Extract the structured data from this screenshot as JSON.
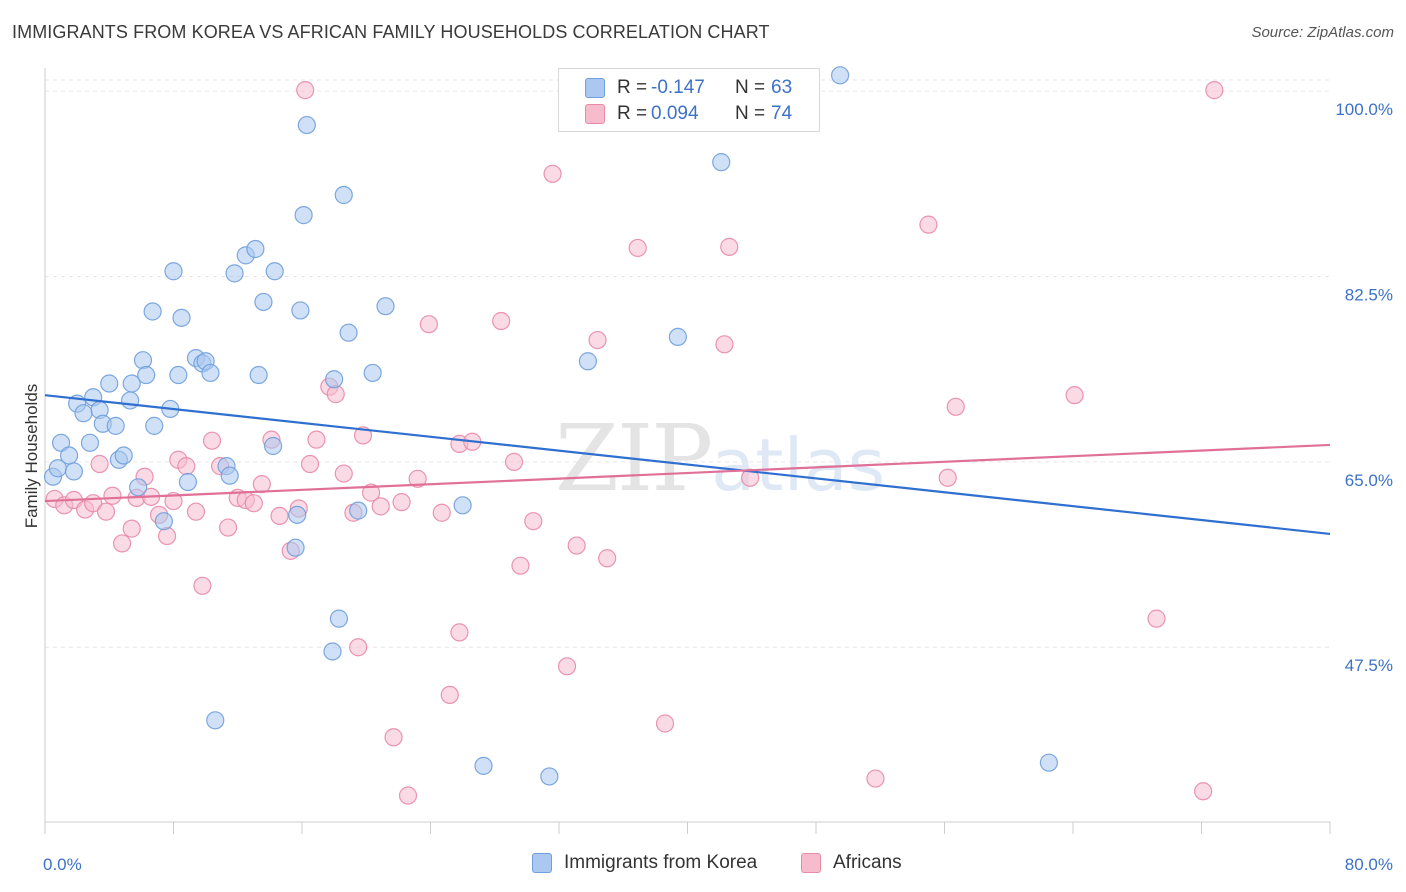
{
  "title": "IMMIGRANTS FROM KOREA VS AFRICAN FAMILY HOUSEHOLDS CORRELATION CHART",
  "source": "Source: ZipAtlas.com",
  "watermark": {
    "zip": "ZIP",
    "atlas": "atlas"
  },
  "colors": {
    "korea_fill": "#aac8f0",
    "korea_stroke": "#6f9fdc",
    "korea_line": "#2f6fd0",
    "africa_fill": "#f6bccd",
    "africa_stroke": "#e88aa8",
    "africa_line": "#e07098",
    "tick_text": "#3d72c6",
    "grid": "#e6e6e6"
  },
  "legend": {
    "rows": [
      {
        "r_label": "R =",
        "r_value": "-0.147",
        "n_label": "N =",
        "n_value": "63"
      },
      {
        "r_label": "R =",
        "r_value": "0.094",
        "n_label": "N =",
        "n_value": "74"
      }
    ]
  },
  "chart_data": {
    "type": "scatter",
    "xlabel": "",
    "ylabel": "Family Households",
    "xlim": [
      0,
      80
    ],
    "ylim": [
      31,
      102
    ],
    "x_tick_labels": [
      {
        "value": 0,
        "label": "0.0%"
      },
      {
        "value": 80,
        "label": "80.0%"
      }
    ],
    "y_tick_labels": [
      {
        "value": 47.5,
        "label": "47.5%"
      },
      {
        "value": 65.0,
        "label": "65.0%"
      },
      {
        "value": 82.5,
        "label": "82.5%"
      },
      {
        "value": 100.0,
        "label": "100.0%"
      }
    ],
    "grid": true,
    "legend_placement": "bottom-center",
    "series": [
      {
        "name": "Immigrants from Korea",
        "trend": {
          "x": [
            0,
            80
          ],
          "y": [
            71.3,
            58.2
          ]
        },
        "points": [
          [
            0.5,
            63.6
          ],
          [
            0.8,
            64.4
          ],
          [
            1.0,
            66.8
          ],
          [
            1.5,
            65.6
          ],
          [
            1.8,
            64.1
          ],
          [
            2.0,
            70.5
          ],
          [
            2.4,
            69.6
          ],
          [
            2.8,
            66.8
          ],
          [
            3.0,
            71.1
          ],
          [
            3.4,
            69.9
          ],
          [
            3.6,
            68.6
          ],
          [
            4.0,
            72.4
          ],
          [
            4.4,
            68.4
          ],
          [
            4.6,
            65.2
          ],
          [
            4.9,
            65.6
          ],
          [
            5.3,
            70.8
          ],
          [
            5.4,
            72.4
          ],
          [
            5.8,
            62.6
          ],
          [
            6.1,
            74.6
          ],
          [
            6.3,
            73.2
          ],
          [
            6.7,
            79.2
          ],
          [
            6.8,
            68.4
          ],
          [
            7.4,
            59.4
          ],
          [
            7.8,
            70.0
          ],
          [
            8.0,
            83.0
          ],
          [
            8.3,
            73.2
          ],
          [
            8.5,
            78.6
          ],
          [
            8.9,
            63.1
          ],
          [
            9.4,
            74.8
          ],
          [
            9.8,
            74.3
          ],
          [
            10.0,
            74.5
          ],
          [
            10.3,
            73.4
          ],
          [
            10.6,
            40.6
          ],
          [
            11.3,
            64.6
          ],
          [
            11.5,
            63.7
          ],
          [
            11.8,
            82.8
          ],
          [
            12.5,
            84.5
          ],
          [
            13.1,
            85.1
          ],
          [
            13.3,
            73.2
          ],
          [
            13.6,
            80.1
          ],
          [
            14.2,
            66.5
          ],
          [
            14.3,
            83.0
          ],
          [
            15.6,
            56.9
          ],
          [
            15.7,
            60.0
          ],
          [
            15.9,
            79.3
          ],
          [
            16.1,
            88.3
          ],
          [
            16.3,
            96.8
          ],
          [
            18.0,
            72.8
          ],
          [
            18.3,
            50.2
          ],
          [
            18.6,
            90.2
          ],
          [
            18.9,
            77.2
          ],
          [
            19.5,
            60.4
          ],
          [
            20.4,
            73.4
          ],
          [
            21.2,
            79.7
          ],
          [
            17.9,
            47.1
          ],
          [
            26.0,
            60.9
          ],
          [
            27.3,
            36.3
          ],
          [
            31.4,
            35.3
          ],
          [
            33.8,
            74.5
          ],
          [
            39.4,
            76.8
          ],
          [
            42.1,
            93.3
          ],
          [
            62.5,
            36.6
          ],
          [
            49.5,
            101.5
          ]
        ]
      },
      {
        "name": "Africans",
        "trend": {
          "x": [
            0,
            80
          ],
          "y": [
            61.3,
            66.6
          ]
        },
        "points": [
          [
            0.6,
            61.5
          ],
          [
            1.2,
            60.9
          ],
          [
            1.8,
            61.4
          ],
          [
            2.5,
            60.5
          ],
          [
            3.0,
            61.1
          ],
          [
            3.4,
            64.8
          ],
          [
            3.8,
            60.3
          ],
          [
            4.2,
            61.8
          ],
          [
            4.8,
            57.3
          ],
          [
            5.4,
            58.7
          ],
          [
            5.7,
            61.6
          ],
          [
            6.2,
            63.6
          ],
          [
            6.6,
            61.7
          ],
          [
            7.1,
            60.0
          ],
          [
            7.6,
            58.0
          ],
          [
            8.0,
            61.3
          ],
          [
            8.3,
            65.2
          ],
          [
            8.8,
            64.6
          ],
          [
            9.4,
            60.3
          ],
          [
            9.8,
            53.3
          ],
          [
            10.4,
            67.0
          ],
          [
            10.9,
            64.6
          ],
          [
            11.4,
            58.8
          ],
          [
            12.0,
            61.6
          ],
          [
            12.5,
            61.4
          ],
          [
            13.0,
            61.1
          ],
          [
            13.5,
            62.9
          ],
          [
            14.1,
            67.1
          ],
          [
            14.6,
            59.9
          ],
          [
            15.3,
            56.6
          ],
          [
            15.8,
            60.6
          ],
          [
            16.5,
            64.8
          ],
          [
            16.9,
            67.1
          ],
          [
            17.7,
            72.1
          ],
          [
            18.1,
            71.4
          ],
          [
            18.6,
            63.9
          ],
          [
            19.2,
            60.2
          ],
          [
            19.8,
            67.5
          ],
          [
            20.3,
            62.1
          ],
          [
            20.9,
            60.8
          ],
          [
            21.7,
            39.0
          ],
          [
            22.2,
            61.2
          ],
          [
            22.6,
            33.5
          ],
          [
            23.2,
            63.4
          ],
          [
            23.9,
            78.0
          ],
          [
            24.7,
            60.2
          ],
          [
            25.2,
            43.0
          ],
          [
            25.8,
            66.7
          ],
          [
            26.6,
            66.9
          ],
          [
            28.4,
            78.3
          ],
          [
            29.2,
            65.0
          ],
          [
            29.6,
            55.2
          ],
          [
            30.4,
            59.4
          ],
          [
            31.6,
            92.2
          ],
          [
            32.5,
            45.7
          ],
          [
            33.1,
            57.1
          ],
          [
            34.4,
            76.5
          ],
          [
            35.0,
            55.9
          ],
          [
            36.9,
            85.2
          ],
          [
            38.6,
            40.3
          ],
          [
            42.3,
            76.1
          ],
          [
            42.6,
            85.3
          ],
          [
            43.9,
            63.5
          ],
          [
            51.7,
            35.1
          ],
          [
            55.0,
            87.4
          ],
          [
            56.2,
            63.5
          ],
          [
            56.7,
            70.2
          ],
          [
            64.1,
            71.3
          ],
          [
            69.2,
            50.2
          ],
          [
            72.1,
            33.9
          ],
          [
            72.8,
            100.1
          ],
          [
            16.2,
            100.1
          ],
          [
            19.5,
            47.5
          ],
          [
            25.8,
            48.9
          ]
        ]
      }
    ]
  }
}
